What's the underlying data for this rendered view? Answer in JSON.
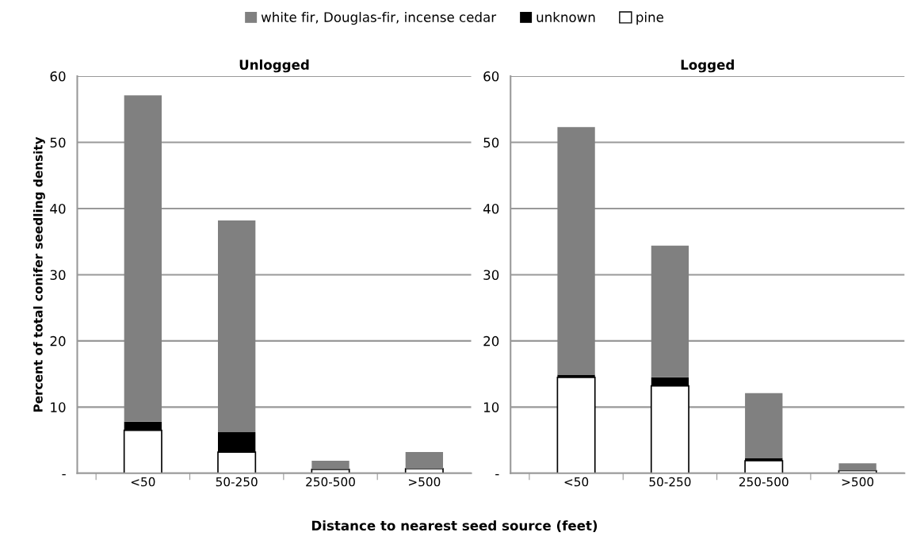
{
  "chart_data": [
    {
      "type": "bar",
      "title": "Unlogged",
      "ylabel": "Percent of total conifer seedling density",
      "xlabel": "Distance to nearest seed source (feet)",
      "categories": [
        "<50",
        "50-250",
        "250-500",
        ">500"
      ],
      "stacked": true,
      "ylim": [
        0,
        60
      ],
      "yticks": [
        {
          "value": 0,
          "label": "-"
        },
        10,
        20,
        30,
        40,
        50,
        60
      ],
      "grid": "y",
      "legend": "top",
      "series": [
        {
          "name": "pine",
          "color": "#ffffff",
          "values": [
            6.5,
            3.2,
            0.6,
            0.7
          ]
        },
        {
          "name": "unknown",
          "color": "#000000",
          "values": [
            1.3,
            3.0,
            0.0,
            0.0
          ]
        },
        {
          "name": "white fir, Douglas-fir, incense cedar",
          "color": "#808080",
          "values": [
            49.3,
            32.0,
            1.3,
            2.5
          ]
        }
      ]
    },
    {
      "type": "bar",
      "title": "Logged",
      "categories": [
        "<50",
        "50-250",
        "250-500",
        ">500"
      ],
      "stacked": true,
      "ylim": [
        0,
        60
      ],
      "yticks": [
        {
          "value": 0,
          "label": "-"
        },
        10,
        20,
        30,
        40,
        50,
        60
      ],
      "grid": "y",
      "series": [
        {
          "color": "#ffffff",
          "values": [
            14.5,
            13.2,
            1.9,
            0.4
          ]
        },
        {
          "color": "#000000",
          "values": [
            0.4,
            1.3,
            0.4,
            0.0
          ]
        },
        {
          "color": "#808080",
          "values": [
            37.4,
            19.9,
            9.8,
            1.1
          ]
        }
      ]
    }
  ]
}
